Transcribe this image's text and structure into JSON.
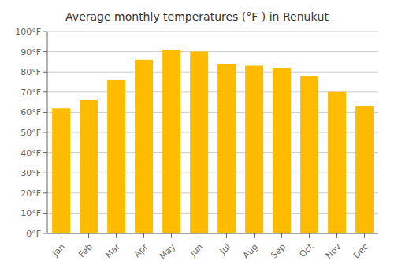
{
  "chart_data": {
    "type": "bar",
    "title": "Average monthly temperatures (°F ) in Renukūt",
    "categories": [
      "Jan",
      "Feb",
      "Mar",
      "Apr",
      "May",
      "Jun",
      "Jul",
      "Aug",
      "Sep",
      "Oct",
      "Nov",
      "Dec"
    ],
    "values": [
      62,
      66,
      76,
      86,
      91,
      90,
      84,
      83,
      82,
      78,
      70,
      63
    ],
    "color": "#FFBB00",
    "ylim": [
      0,
      100
    ],
    "yticks": [
      {
        "value": 0,
        "label": "0°F"
      },
      {
        "value": 10,
        "label": "10°F"
      },
      {
        "value": 20,
        "label": "20°F"
      },
      {
        "value": 30,
        "label": "30°F"
      },
      {
        "value": 40,
        "label": "40°F"
      },
      {
        "value": 50,
        "label": "50°F"
      },
      {
        "value": 60,
        "label": "60°F"
      },
      {
        "value": 70,
        "label": "70°F"
      },
      {
        "value": 80,
        "label": "80°F"
      },
      {
        "value": 90,
        "label": "90°F"
      },
      {
        "value": 100,
        "label": "100°F"
      }
    ],
    "grid": true
  }
}
